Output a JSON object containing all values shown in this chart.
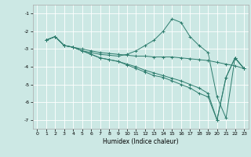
{
  "xlabel": "Humidex (Indice chaleur)",
  "ylabel": "",
  "bg_color": "#cce8e4",
  "grid_color": "#ffffff",
  "line_color": "#2e7d6e",
  "xlim": [
    -0.5,
    23.5
  ],
  "ylim": [
    -7.5,
    -0.5
  ],
  "yticks": [
    -7,
    -6,
    -5,
    -4,
    -3,
    -2,
    -1
  ],
  "xticks": [
    0,
    1,
    2,
    3,
    4,
    5,
    6,
    7,
    8,
    9,
    10,
    11,
    12,
    13,
    14,
    15,
    16,
    17,
    18,
    19,
    20,
    21,
    22,
    23
  ],
  "series": [
    {
      "x": [
        1,
        2,
        3,
        4,
        5,
        6,
        7,
        8,
        9,
        10,
        11,
        12,
        13,
        14,
        15,
        16,
        17,
        18,
        19,
        20,
        21,
        22,
        23
      ],
      "y": [
        -2.5,
        -2.3,
        -2.8,
        -2.9,
        -3.0,
        -3.1,
        -3.2,
        -3.25,
        -3.3,
        -3.35,
        -3.4,
        -3.4,
        -3.45,
        -3.45,
        -3.45,
        -3.5,
        -3.55,
        -3.6,
        -3.65,
        -3.75,
        -3.85,
        -3.95,
        -4.1
      ]
    },
    {
      "x": [
        1,
        2,
        3,
        4,
        5,
        6,
        7,
        8,
        9,
        10,
        11,
        12,
        13,
        14,
        15,
        16,
        17,
        18,
        19,
        20,
        21,
        22,
        23
      ],
      "y": [
        -2.5,
        -2.3,
        -2.8,
        -2.9,
        -3.1,
        -3.2,
        -3.3,
        -3.35,
        -3.4,
        -3.3,
        -3.1,
        -2.8,
        -2.5,
        -2.0,
        -1.3,
        -1.5,
        -2.3,
        -2.8,
        -3.2,
        -5.7,
        -6.9,
        -3.5,
        -4.1
      ]
    },
    {
      "x": [
        1,
        2,
        3,
        4,
        5,
        6,
        7,
        8,
        9,
        10,
        11,
        12,
        13,
        14,
        15,
        16,
        17,
        18,
        19,
        20,
        21,
        22,
        23
      ],
      "y": [
        -2.5,
        -2.3,
        -2.8,
        -2.9,
        -3.1,
        -3.3,
        -3.5,
        -3.6,
        -3.7,
        -3.9,
        -4.1,
        -4.3,
        -4.5,
        -4.6,
        -4.8,
        -5.0,
        -5.2,
        -5.5,
        -5.7,
        -7.0,
        -4.6,
        -3.5,
        -4.1
      ]
    },
    {
      "x": [
        1,
        2,
        3,
        4,
        5,
        6,
        7,
        8,
        9,
        10,
        11,
        12,
        13,
        14,
        15,
        16,
        17,
        18,
        19,
        20,
        21,
        22,
        23
      ],
      "y": [
        -2.5,
        -2.3,
        -2.8,
        -2.9,
        -3.1,
        -3.3,
        -3.5,
        -3.6,
        -3.7,
        -3.85,
        -4.0,
        -4.2,
        -4.35,
        -4.5,
        -4.65,
        -4.8,
        -5.0,
        -5.2,
        -5.5,
        -7.0,
        -4.6,
        -3.5,
        -4.1
      ]
    }
  ]
}
